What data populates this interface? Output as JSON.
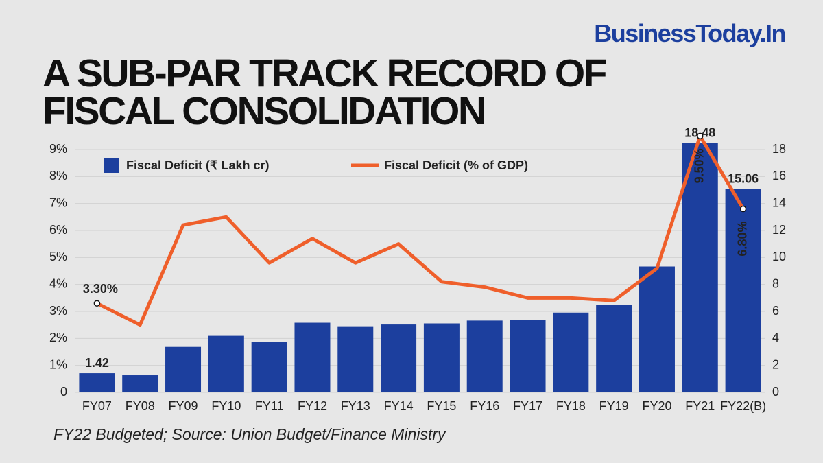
{
  "brand": "BusinessToday.In",
  "chart_data": {
    "type": "combo",
    "title": "A SUB-PAR TRACK RECORD OF FISCAL CONSOLIDATION",
    "note": "FY22 Budgeted; Source: Union Budget/Finance Ministry",
    "categories": [
      "FY07",
      "FY08",
      "FY09",
      "FY10",
      "FY11",
      "FY12",
      "FY13",
      "FY14",
      "FY15",
      "FY16",
      "FY17",
      "FY18",
      "FY19",
      "FY20",
      "FY21",
      "FY22(B)"
    ],
    "series": [
      {
        "name": "Fiscal Deficit (₹ Lakh cr)",
        "type": "bar",
        "axis": "y2",
        "color": "#1c3f9e",
        "values": [
          1.42,
          1.27,
          3.37,
          4.19,
          3.74,
          5.16,
          4.9,
          5.03,
          5.11,
          5.32,
          5.36,
          5.91,
          6.49,
          9.33,
          18.48,
          15.06
        ],
        "value_labels": [
          "1.42",
          null,
          null,
          null,
          null,
          null,
          null,
          null,
          null,
          null,
          null,
          null,
          null,
          null,
          "18.48",
          "15.06"
        ]
      },
      {
        "name": "Fiscal Deficit (% of GDP)",
        "type": "line",
        "axis": "y",
        "color": "#ef5f2b",
        "values": [
          3.3,
          2.5,
          6.2,
          6.5,
          4.8,
          5.7,
          4.8,
          5.5,
          4.1,
          3.9,
          3.5,
          3.5,
          3.4,
          4.6,
          9.5,
          6.8
        ],
        "value_labels": [
          "3.30%",
          null,
          null,
          null,
          null,
          null,
          null,
          null,
          null,
          null,
          null,
          null,
          null,
          null,
          "9.50%",
          "6.80%"
        ]
      }
    ],
    "ylim": [
      0,
      9
    ],
    "yticks": [
      0,
      {
        "value": 1,
        "label": "1%"
      },
      {
        "value": 2,
        "label": "2%"
      },
      {
        "value": 3,
        "label": "3%"
      },
      {
        "value": 4,
        "label": "4%"
      },
      {
        "value": 5,
        "label": "5%"
      },
      {
        "value": 6,
        "label": "6%"
      },
      {
        "value": 7,
        "label": "7%"
      },
      {
        "value": 8,
        "label": "8%"
      },
      {
        "value": 9,
        "label": "9%"
      }
    ],
    "y2lim": [
      0,
      18
    ],
    "y2ticks": [
      0,
      2,
      4,
      6,
      8,
      10,
      12,
      14,
      16,
      18
    ],
    "grid": true
  }
}
